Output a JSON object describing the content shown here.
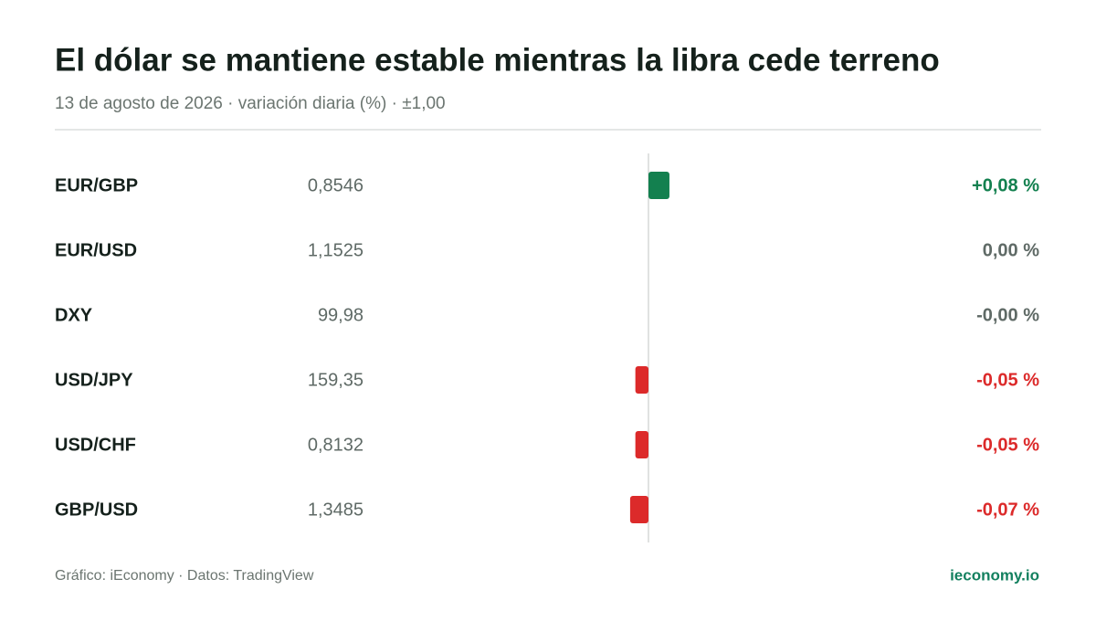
{
  "chart_data": {
    "type": "diverging-bar",
    "title": "El dólar se mantiene estable mientras la libra cede terreno",
    "subtitle": "13 de agosto de 2026 · variación diaria (%) · ±1,00",
    "categories": [
      "EUR/GBP",
      "EUR/USD",
      "DXY",
      "USD/JPY",
      "USD/CHF",
      "GBP/USD"
    ],
    "prices": [
      "0,8546",
      "1,1525",
      "99,98",
      "159,35",
      "0,8132",
      "1,3485"
    ],
    "values": [
      0.08,
      0,
      0,
      -0.05,
      -0.05,
      -0.07
    ],
    "value_labels": [
      "+0,08 %",
      "0,00 %",
      "-0,00 %",
      "-0,05 %",
      "-0,05 %",
      "-0,07 %"
    ],
    "xlim": [
      -1,
      1
    ],
    "colors": {
      "positive": "#13804f",
      "negative": "#dc2a2a",
      "neutral": "#5f6a66"
    },
    "source": "Gráfico: iEconomy · Datos: TradingView",
    "brand": "ieconomy.io"
  }
}
